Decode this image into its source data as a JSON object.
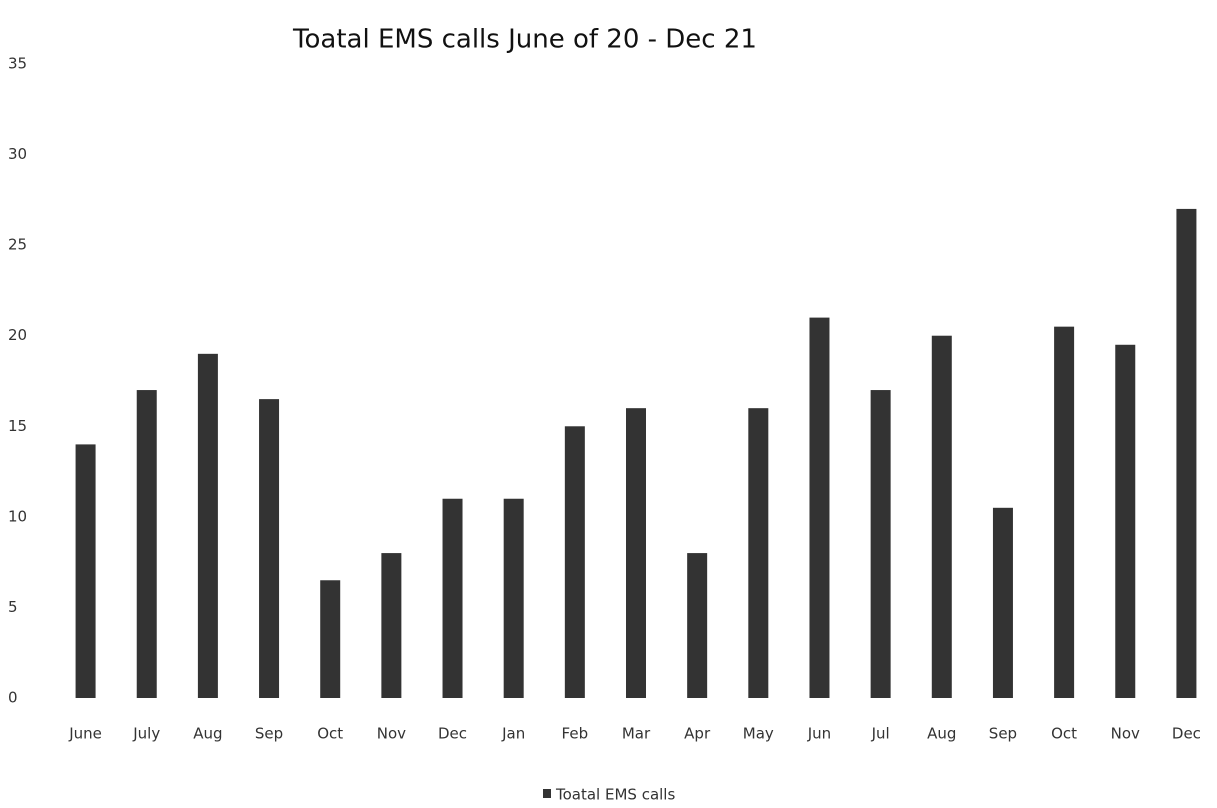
{
  "chart_data": {
    "type": "bar",
    "title": "Toatal EMS calls June of 20 - Dec 21",
    "categories": [
      "June",
      "July",
      "Aug",
      "Sep",
      "Oct",
      "Nov",
      "Dec",
      "Jan",
      "Feb",
      "Mar",
      "Apr",
      "May",
      "Jun",
      "Jul",
      "Aug",
      "Sep",
      "Oct",
      "Nov",
      "Dec"
    ],
    "series": [
      {
        "name": "Toatal EMS calls",
        "color": "#333333",
        "values": [
          14,
          17,
          19,
          16.5,
          6.5,
          8,
          11,
          11,
          15,
          16,
          8,
          16,
          21,
          17,
          20,
          10.5,
          20.5,
          19.5,
          27
        ]
      }
    ],
    "ylim": [
      0,
      35
    ],
    "yticks": [
      0,
      5,
      10,
      15,
      20,
      25,
      30,
      35
    ],
    "grid": false,
    "legend": "bottom"
  }
}
